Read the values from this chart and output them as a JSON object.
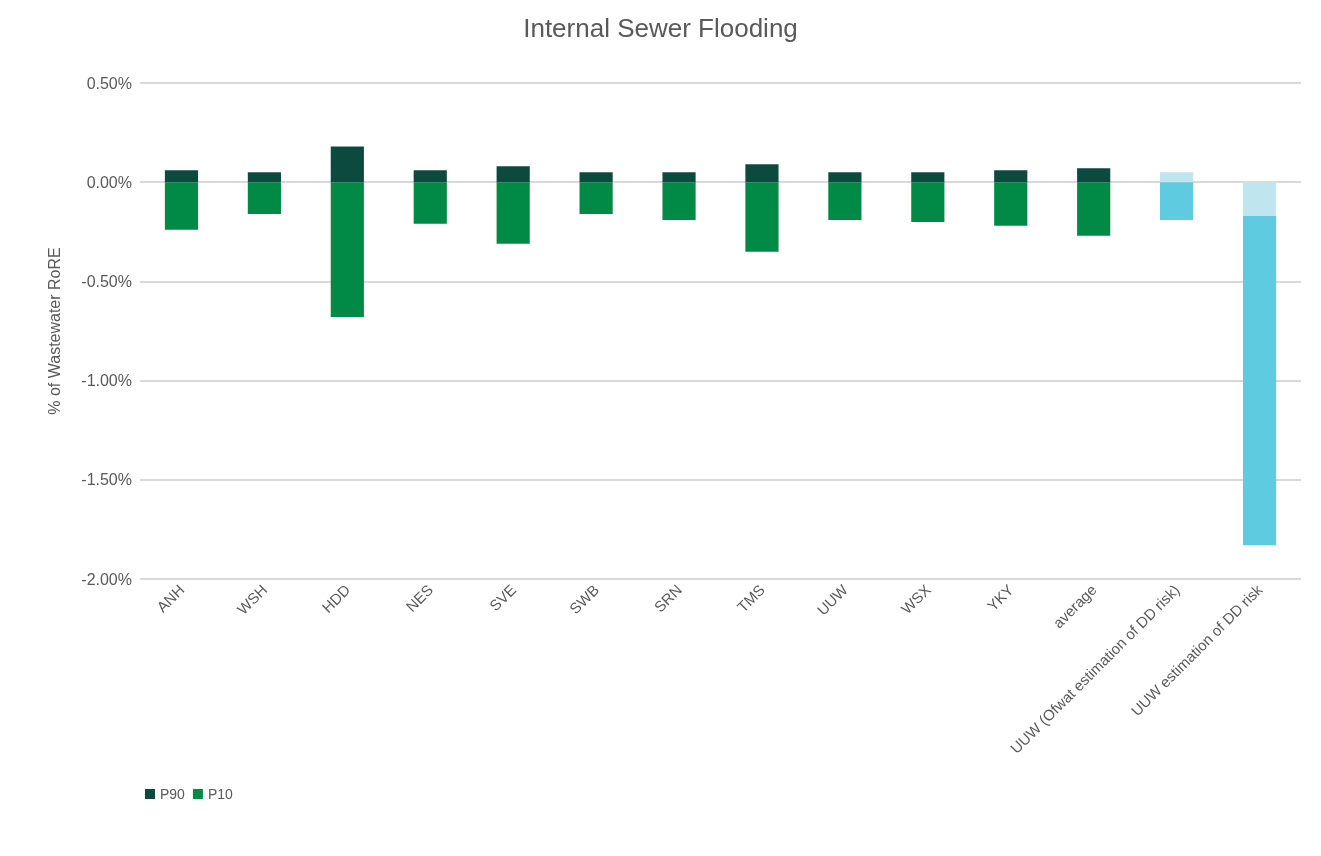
{
  "chart_data": {
    "type": "bar",
    "title": "Internal Sewer Flooding",
    "ylabel": "% of Wastewater RoRE",
    "categories": [
      "ANH",
      "WSH",
      "HDD",
      "NES",
      "SVE",
      "SWB",
      "SRN",
      "TMS",
      "UUW",
      "WSX",
      "YKY",
      "average",
      "UUW (Ofwat estimation of DD risk)",
      "UUW estimation of DD risk"
    ],
    "stacked": true,
    "series": [
      {
        "name": "P90",
        "color": "#0b4a3c",
        "colors": [
          "#0b4a3c",
          "#0b4a3c",
          "#0b4a3c",
          "#0b4a3c",
          "#0b4a3c",
          "#0b4a3c",
          "#0b4a3c",
          "#0b4a3c",
          "#0b4a3c",
          "#0b4a3c",
          "#0b4a3c",
          "#0b4a3c",
          "#bfe6ef",
          "#bfe6ef"
        ],
        "values": [
          0.06,
          0.05,
          0.18,
          0.06,
          0.08,
          0.05,
          0.05,
          0.09,
          0.05,
          0.05,
          0.06,
          0.07,
          0.05,
          -0.17
        ]
      },
      {
        "name": "P10",
        "color": "#008a45",
        "colors": [
          "#008a45",
          "#008a45",
          "#008a45",
          "#008a45",
          "#008a45",
          "#008a45",
          "#008a45",
          "#008a45",
          "#008a45",
          "#008a45",
          "#008a45",
          "#008a45",
          "#5ecbe0",
          "#5ecbe0"
        ],
        "values": [
          -0.24,
          -0.16,
          -0.68,
          -0.21,
          -0.31,
          -0.16,
          -0.19,
          -0.35,
          -0.19,
          -0.2,
          -0.22,
          -0.27,
          -0.19,
          -1.66
        ]
      }
    ],
    "ylim": [
      -2,
      0.5
    ],
    "yticks": [
      {
        "value": -2,
        "label": "-2.00%"
      },
      {
        "value": -1.5,
        "label": "-1.50%"
      },
      {
        "value": -1,
        "label": "-1.00%"
      },
      {
        "value": -0.5,
        "label": "-0.50%"
      },
      {
        "value": 0,
        "label": "0.00%"
      },
      {
        "value": 0.5,
        "label": "0.50%"
      }
    ],
    "grid": "y",
    "legend": "bottom left"
  }
}
